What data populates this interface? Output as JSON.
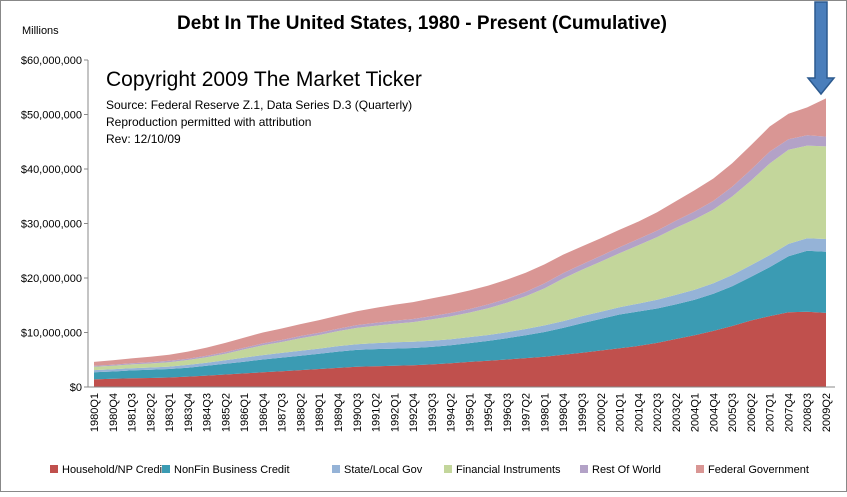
{
  "chart_data": {
    "type": "stacked-area",
    "title": "Debt In The United States, 1980 - Present (Cumulative)",
    "y_axis_label": "Millions",
    "annotations": [
      "Copyright 2009 The Market Ticker",
      "Source: Federal Reserve Z.1, Data Series D.3 (Quarterly)",
      "Reproduction permitted with attribution",
      "Rev: 12/10/09"
    ],
    "categories": [
      "1980Q1",
      "1980Q4",
      "1981Q3",
      "1982Q2",
      "1983Q1",
      "1983Q4",
      "1984Q3",
      "1985Q2",
      "1986Q1",
      "1986Q4",
      "1987Q3",
      "1988Q2",
      "1989Q1",
      "1989Q4",
      "1990Q3",
      "1991Q2",
      "1992Q1",
      "1992Q4",
      "1993Q3",
      "1994Q2",
      "1995Q1",
      "1995Q4",
      "1996Q3",
      "1997Q2",
      "1998Q1",
      "1998Q4",
      "1999Q3",
      "2000Q2",
      "2001Q1",
      "2001Q4",
      "2002Q3",
      "2003Q2",
      "2004Q1",
      "2004Q4",
      "2005Q3",
      "2006Q2",
      "2007Q1",
      "2007Q4",
      "2008Q3",
      "2009Q2"
    ],
    "series": [
      {
        "name": "Household/NP Credit",
        "color": "#c0504d",
        "values": [
          1400000,
          1500000,
          1600000,
          1650000,
          1750000,
          1900000,
          2100000,
          2300000,
          2500000,
          2700000,
          2900000,
          3100000,
          3300000,
          3500000,
          3700000,
          3800000,
          3900000,
          4000000,
          4150000,
          4350000,
          4600000,
          4800000,
          5050000,
          5300000,
          5550000,
          5900000,
          6300000,
          6700000,
          7100000,
          7550000,
          8100000,
          8800000,
          9500000,
          10300000,
          11200000,
          12200000,
          13000000,
          13700000,
          13800000,
          13600000
        ]
      },
      {
        "name": "NonFin Business Credit",
        "color": "#3b9bb3",
        "values": [
          1300000,
          1350000,
          1450000,
          1500000,
          1550000,
          1650000,
          1800000,
          1950000,
          2150000,
          2350000,
          2500000,
          2650000,
          2800000,
          3000000,
          3100000,
          3150000,
          3150000,
          3150000,
          3200000,
          3300000,
          3450000,
          3650000,
          3900000,
          4200000,
          4550000,
          4950000,
          5400000,
          5800000,
          6200000,
          6300000,
          6300000,
          6350000,
          6500000,
          6800000,
          7300000,
          8000000,
          9000000,
          10300000,
          11200000,
          11200000
        ]
      },
      {
        "name": "State/Local Gov",
        "color": "#95b3d7",
        "values": [
          400000,
          400000,
          400000,
          420000,
          450000,
          500000,
          550000,
          650000,
          750000,
          800000,
          850000,
          900000,
          950000,
          1000000,
          1050000,
          1100000,
          1150000,
          1150000,
          1150000,
          1100000,
          1100000,
          1100000,
          1100000,
          1150000,
          1200000,
          1250000,
          1300000,
          1300000,
          1350000,
          1450000,
          1600000,
          1750000,
          1850000,
          1950000,
          2050000,
          2150000,
          2200000,
          2250000,
          2300000,
          2350000
        ]
      },
      {
        "name": "Financial Instruments",
        "color": "#c3d69b",
        "values": [
          600000,
          650000,
          700000,
          750000,
          800000,
          900000,
          1000000,
          1200000,
          1500000,
          1800000,
          2000000,
          2300000,
          2500000,
          2750000,
          3000000,
          3200000,
          3400000,
          3600000,
          3900000,
          4200000,
          4500000,
          4900000,
          5400000,
          6000000,
          6800000,
          7800000,
          8500000,
          9200000,
          9900000,
          10700000,
          11500000,
          12300000,
          12900000,
          13500000,
          14400000,
          15500000,
          16800000,
          17300000,
          17000000,
          17000000
        ]
      },
      {
        "name": "Rest Of World",
        "color": "#b3a2c7",
        "values": [
          200000,
          200000,
          200000,
          220000,
          250000,
          250000,
          280000,
          300000,
          320000,
          350000,
          380000,
          400000,
          420000,
          450000,
          500000,
          520000,
          550000,
          580000,
          600000,
          620000,
          650000,
          700000,
          750000,
          800000,
          900000,
          1000000,
          1000000,
          1050000,
          1100000,
          1150000,
          1200000,
          1300000,
          1450000,
          1600000,
          1800000,
          2000000,
          2200000,
          1900000,
          1900000,
          1800000
        ]
      },
      {
        "name": "Federal Government",
        "color": "#d99694",
        "values": [
          700000,
          800000,
          900000,
          1000000,
          1100000,
          1300000,
          1500000,
          1700000,
          1850000,
          2000000,
          2100000,
          2200000,
          2300000,
          2400000,
          2550000,
          2750000,
          2950000,
          3100000,
          3250000,
          3350000,
          3400000,
          3450000,
          3500000,
          3500000,
          3500000,
          3400000,
          3300000,
          3250000,
          3200000,
          3200000,
          3350000,
          3600000,
          3900000,
          4100000,
          4300000,
          4500000,
          4600000,
          4700000,
          5100000,
          7000000
        ]
      }
    ],
    "ylim": [
      0,
      60000000
    ],
    "yticks": [
      {
        "value": 0,
        "label": "$0"
      },
      {
        "value": 10000000,
        "label": "$10,000,000"
      },
      {
        "value": 20000000,
        "label": "$20,000,000"
      },
      {
        "value": 30000000,
        "label": "$30,000,000"
      },
      {
        "value": 40000000,
        "label": "$40,000,000"
      },
      {
        "value": 50000000,
        "label": "$50,000,000"
      },
      {
        "value": 60000000,
        "label": "$60,000,000"
      }
    ],
    "grid": false,
    "legend": "bottom"
  }
}
